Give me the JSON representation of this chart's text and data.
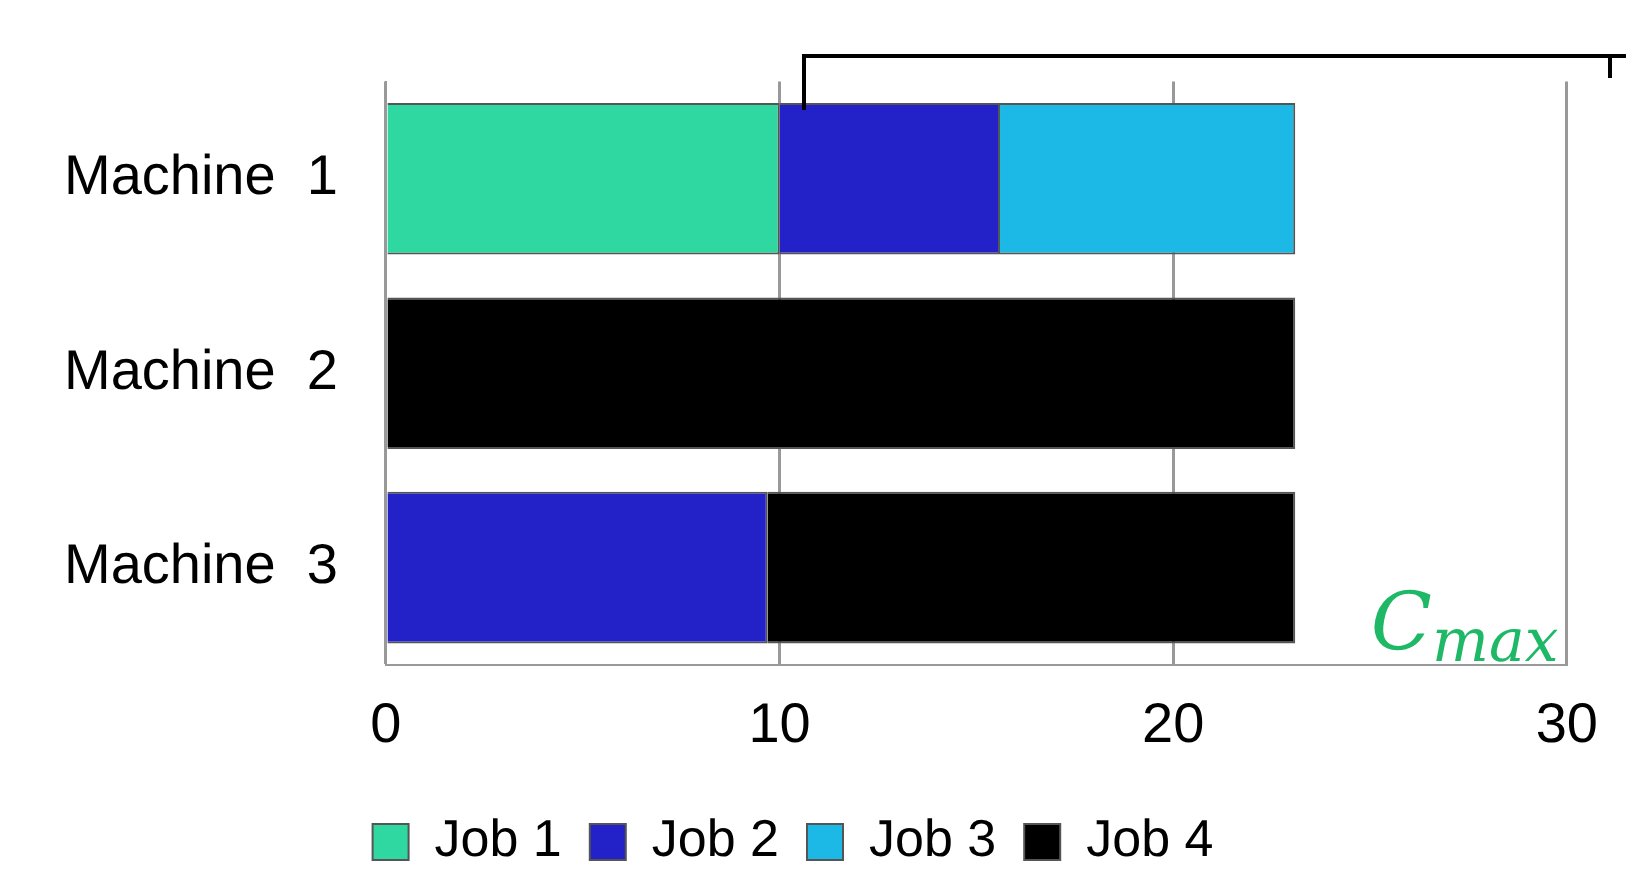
{
  "chart_data": {
    "type": "bar",
    "orientation": "horizontal",
    "stacked": true,
    "categories": [
      "Machine  1",
      "Machine  2",
      "Machine  3"
    ],
    "series": [
      {
        "name": "Job 1",
        "color": "#2fd8a0",
        "values": [
          10,
          null,
          null
        ]
      },
      {
        "name": "Job 2",
        "color": "#2222c8",
        "values": [
          5.6,
          null,
          9.7
        ]
      },
      {
        "name": "Job 3",
        "color": "#1cb8e6",
        "values": [
          7.5,
          null,
          null
        ]
      },
      {
        "name": "Job 4",
        "color": "#000000",
        "values": [
          null,
          23.1,
          13.4
        ]
      }
    ],
    "xlim": [
      0,
      30
    ],
    "xticks": [
      0,
      10,
      20,
      30
    ],
    "grid": "x",
    "legend": "bottom",
    "annotations": [
      "C$_{max}$"
    ]
  }
}
